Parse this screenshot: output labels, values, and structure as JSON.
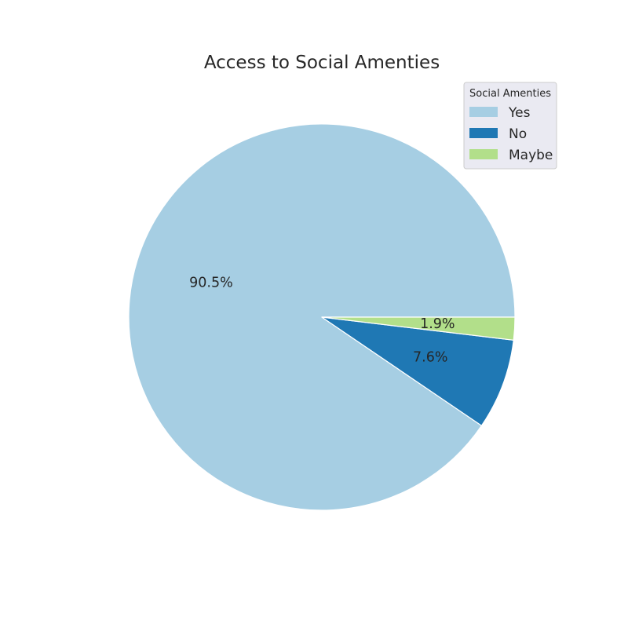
{
  "chart_data": {
    "type": "pie",
    "title": "Access to Social Amenties",
    "categories": [
      "Yes",
      "No",
      "Maybe"
    ],
    "values": [
      90.5,
      7.6,
      1.9
    ],
    "value_labels": [
      "90.5%",
      "7.6%",
      "1.9%"
    ],
    "colors": [
      "#a6cee3",
      "#1f78b4",
      "#b2df8a"
    ],
    "start_angle_deg": 0,
    "direction": "counterclockwise",
    "legend": {
      "title": "Social Amenties",
      "placement": "upper-right",
      "entries": [
        "Yes",
        "No",
        "Maybe"
      ]
    }
  }
}
